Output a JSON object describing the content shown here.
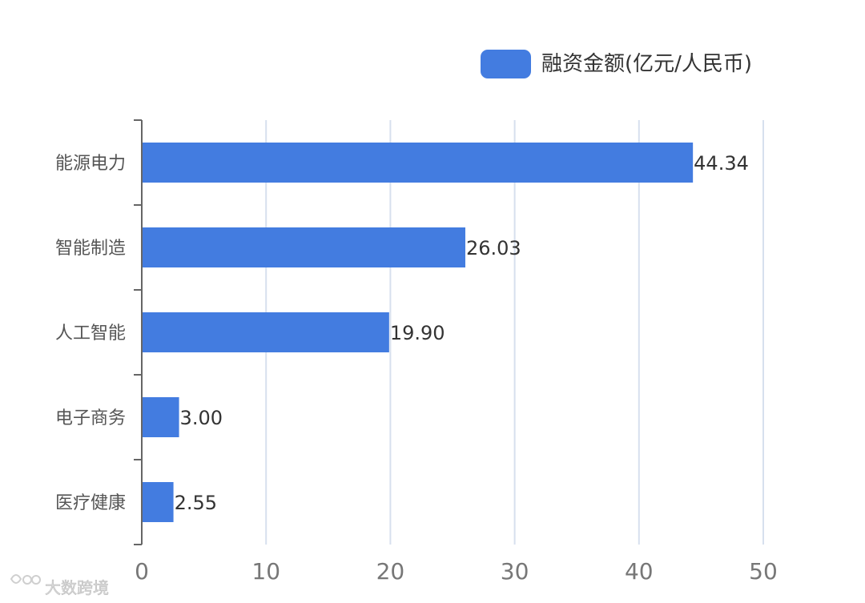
{
  "chart_data": {
    "type": "bar",
    "orientation": "horizontal",
    "categories": [
      "能源电力",
      "智能制造",
      "人工智能",
      "电子商务",
      "医疗健康"
    ],
    "series": [
      {
        "name": "融资金额(亿元/人民币)",
        "values": [
          44.34,
          26.03,
          19.9,
          3.0,
          2.55
        ],
        "value_labels": [
          "44.34",
          "26.03",
          "19.90",
          "3.00",
          "2.55"
        ]
      }
    ],
    "xlim": [
      0,
      50
    ],
    "xticks": [
      0,
      10,
      20,
      30,
      40,
      50
    ],
    "grid": "vertical",
    "legend_position": "top-right",
    "colors": {
      "bar": "#437ce0",
      "grid": "#d7e0ee",
      "axis": "#666666"
    }
  },
  "watermark": {
    "text": "大数跨境"
  }
}
